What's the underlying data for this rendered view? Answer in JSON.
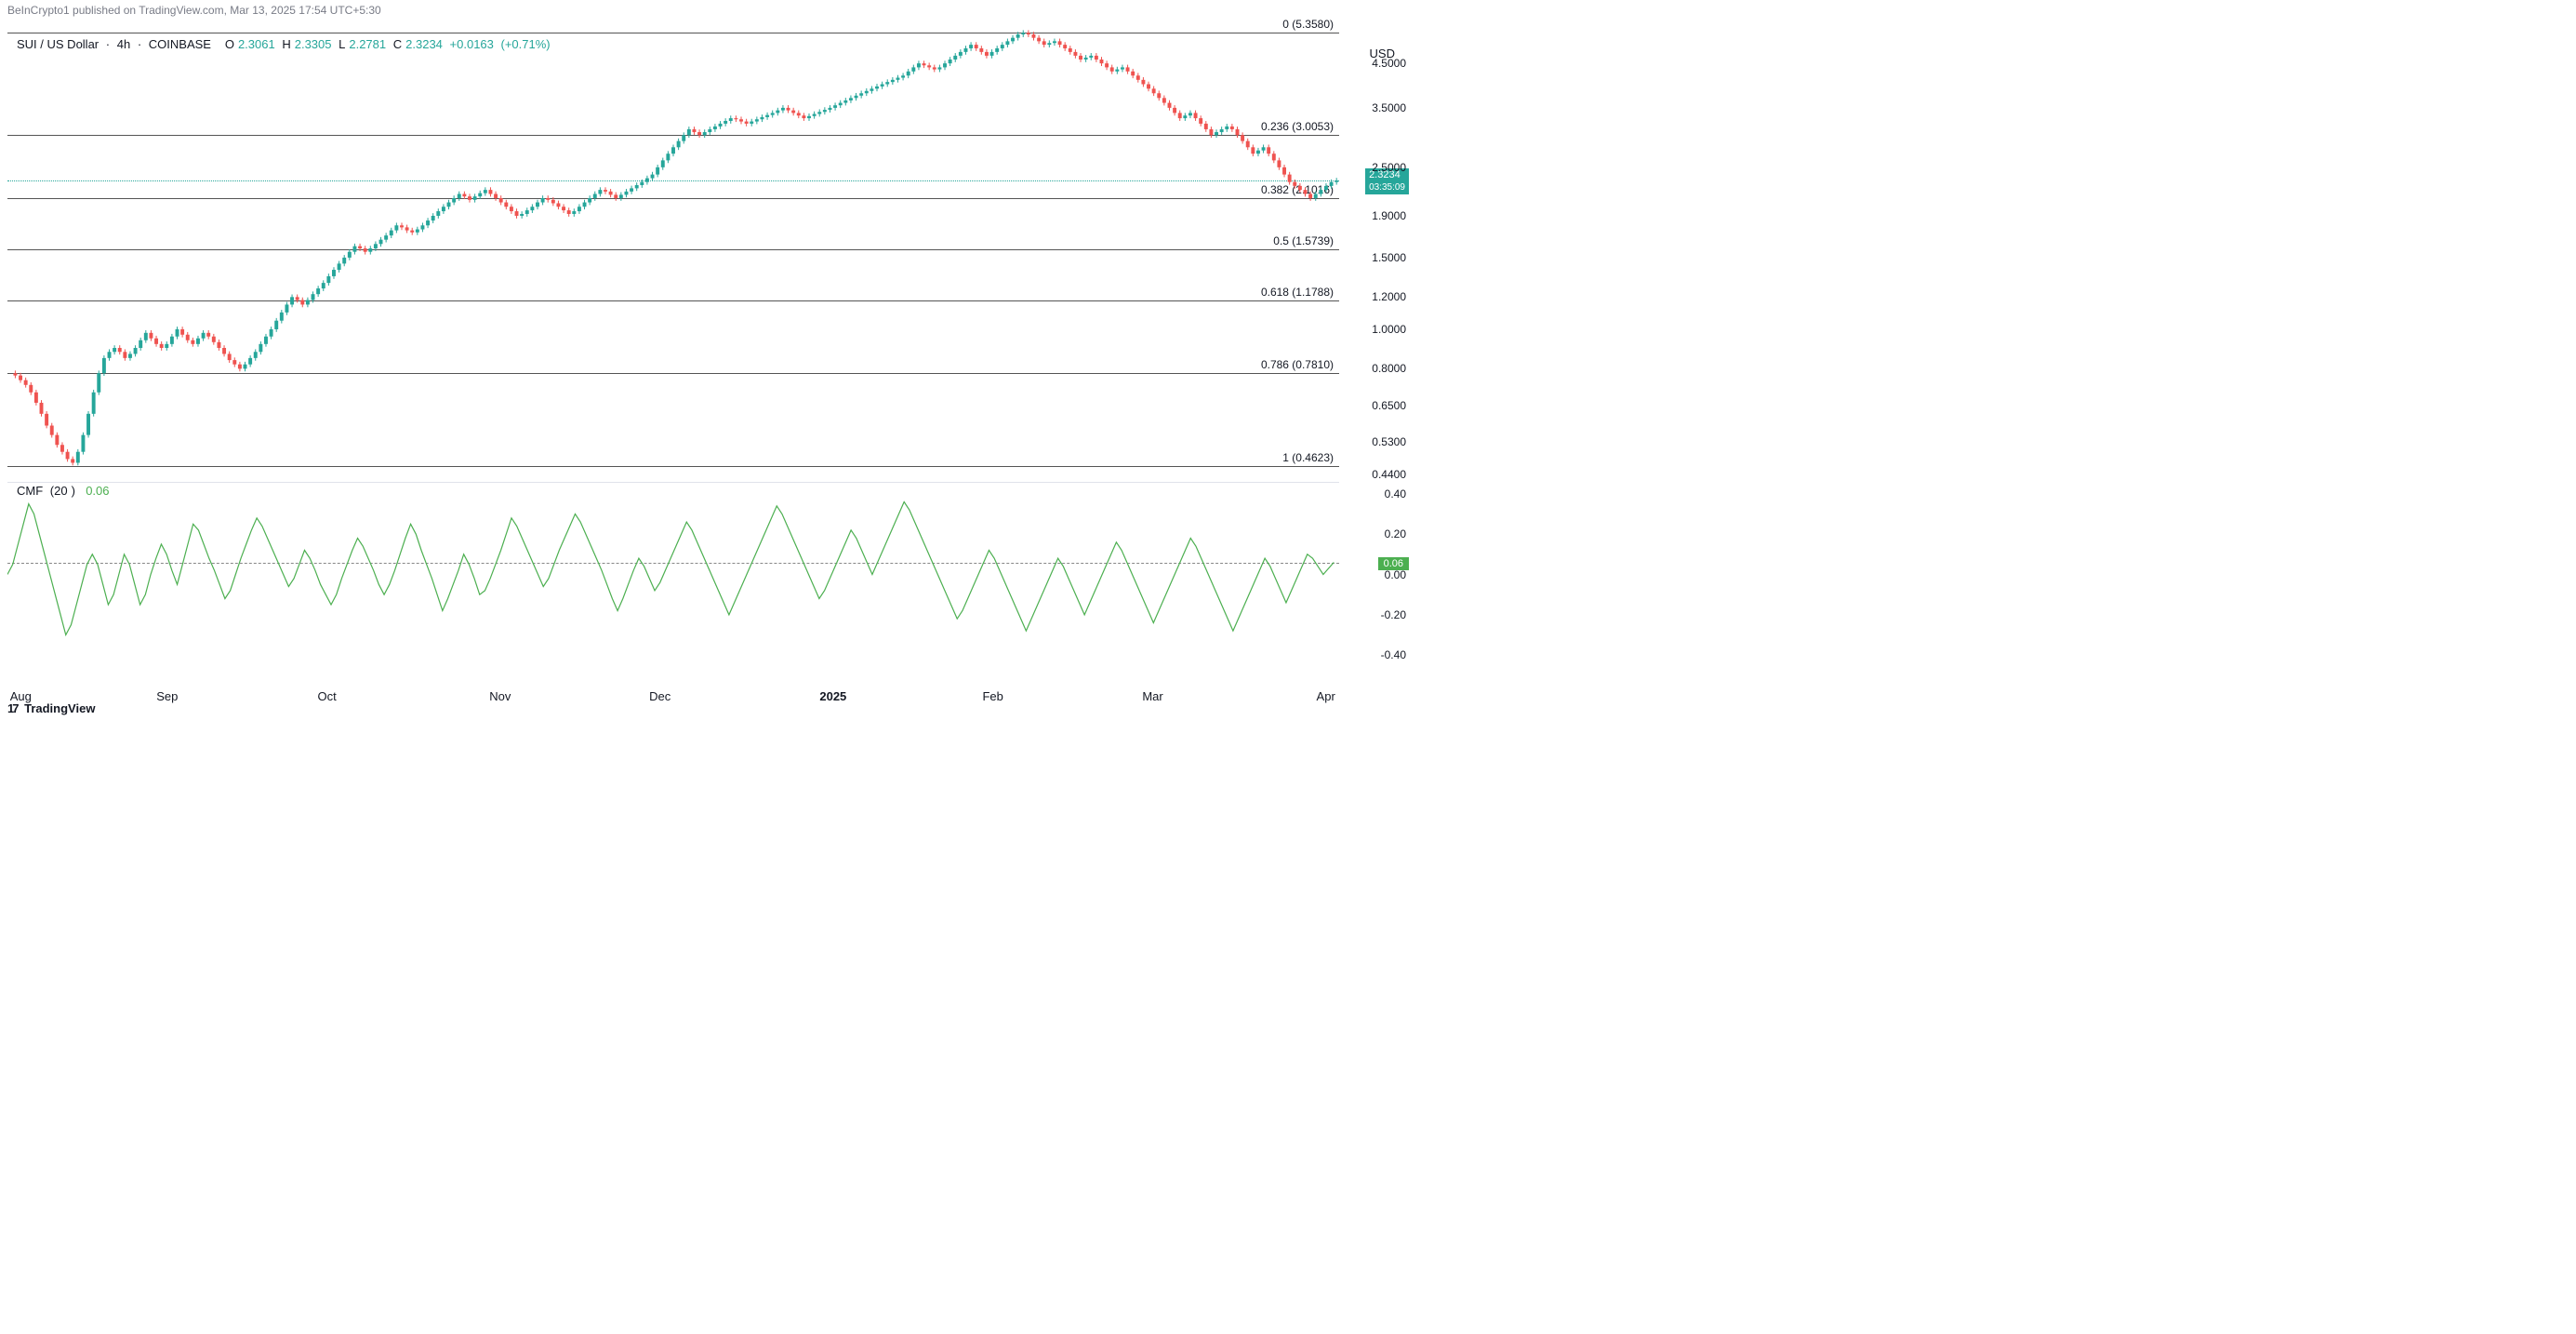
{
  "attribution": "BeInCrypto1 published on TradingView.com, Mar 13, 2025 17:54 UTC+5:30",
  "footer": {
    "brand": "TradingView",
    "icon": "17"
  },
  "main_chart": {
    "symbol": "SUI / US Dollar",
    "timeframe": "4h",
    "exchange": "COINBASE",
    "ohlc": {
      "o_label": "O",
      "o_value": "2.3061",
      "h_label": "H",
      "h_value": "2.3305",
      "l_label": "L",
      "l_value": "2.2781",
      "c_label": "C",
      "c_value": "2.3234",
      "change": "+0.0163",
      "change_pct": "(+0.71%)"
    },
    "current_price": "2.3234",
    "countdown": "03:35:09",
    "y_unit": "USD",
    "y_scale": "log",
    "ylim": [
      0.44,
      5.5
    ],
    "y_ticks": [
      {
        "v": 4.5,
        "label": "4.5000"
      },
      {
        "v": 3.5,
        "label": "3.5000"
      },
      {
        "v": 2.5,
        "label": "2.5000"
      },
      {
        "v": 1.9,
        "label": "1.9000"
      },
      {
        "v": 1.5,
        "label": "1.5000"
      },
      {
        "v": 1.2,
        "label": "1.2000"
      },
      {
        "v": 1.0,
        "label": "1.0000"
      },
      {
        "v": 0.8,
        "label": "0.8000"
      },
      {
        "v": 0.65,
        "label": "0.6500"
      },
      {
        "v": 0.53,
        "label": "0.5300"
      },
      {
        "v": 0.44,
        "label": "0.4400"
      }
    ],
    "fib_levels": [
      {
        "ratio": "0",
        "price": 5.358,
        "label": "0 (5.3580)"
      },
      {
        "ratio": "0.236",
        "price": 3.0053,
        "label": "0.236 (3.0053)"
      },
      {
        "ratio": "0.382",
        "price": 2.1016,
        "label": "0.382 (2.1016)"
      },
      {
        "ratio": "0.5",
        "price": 1.5739,
        "label": "0.5 (1.5739)"
      },
      {
        "ratio": "0.618",
        "price": 1.1788,
        "label": "0.618 (1.1788)"
      },
      {
        "ratio": "0.786",
        "price": 0.781,
        "label": "0.786 (0.7810)"
      },
      {
        "ratio": "1",
        "price": 0.4623,
        "label": "1 (0.4623)"
      }
    ],
    "colors": {
      "up_body": "#26a69a",
      "down_body": "#ef5350",
      "fib_line": "#555555",
      "price_line": "#26a69a",
      "text": "#131722",
      "bg": "#ffffff"
    },
    "price_series": [
      0.78,
      0.77,
      0.75,
      0.73,
      0.7,
      0.66,
      0.62,
      0.58,
      0.55,
      0.52,
      0.5,
      0.48,
      0.47,
      0.5,
      0.55,
      0.62,
      0.7,
      0.78,
      0.85,
      0.88,
      0.9,
      0.88,
      0.85,
      0.87,
      0.9,
      0.94,
      0.98,
      0.95,
      0.92,
      0.9,
      0.92,
      0.96,
      1.0,
      0.97,
      0.94,
      0.92,
      0.95,
      0.98,
      0.96,
      0.93,
      0.9,
      0.87,
      0.84,
      0.82,
      0.8,
      0.82,
      0.85,
      0.88,
      0.92,
      0.96,
      1.0,
      1.05,
      1.1,
      1.15,
      1.2,
      1.18,
      1.15,
      1.18,
      1.22,
      1.26,
      1.3,
      1.35,
      1.4,
      1.45,
      1.5,
      1.55,
      1.6,
      1.58,
      1.55,
      1.58,
      1.62,
      1.66,
      1.7,
      1.75,
      1.8,
      1.78,
      1.75,
      1.73,
      1.76,
      1.8,
      1.85,
      1.9,
      1.95,
      2.0,
      2.05,
      2.1,
      2.15,
      2.12,
      2.08,
      2.12,
      2.16,
      2.2,
      2.15,
      2.1,
      2.05,
      2.0,
      1.95,
      1.9,
      1.92,
      1.96,
      2.0,
      2.05,
      2.1,
      2.08,
      2.04,
      2.0,
      1.96,
      1.92,
      1.95,
      2.0,
      2.05,
      2.1,
      2.15,
      2.2,
      2.18,
      2.14,
      2.1,
      2.14,
      2.18,
      2.22,
      2.26,
      2.3,
      2.35,
      2.4,
      2.5,
      2.6,
      2.7,
      2.8,
      2.9,
      3.0,
      3.1,
      3.05,
      3.0,
      3.05,
      3.1,
      3.15,
      3.2,
      3.25,
      3.3,
      3.28,
      3.24,
      3.2,
      3.24,
      3.28,
      3.32,
      3.36,
      3.4,
      3.45,
      3.5,
      3.45,
      3.4,
      3.35,
      3.3,
      3.34,
      3.38,
      3.42,
      3.46,
      3.5,
      3.55,
      3.6,
      3.65,
      3.7,
      3.75,
      3.8,
      3.85,
      3.9,
      3.95,
      4.0,
      4.05,
      4.1,
      4.15,
      4.2,
      4.3,
      4.4,
      4.5,
      4.45,
      4.4,
      4.35,
      4.4,
      4.5,
      4.6,
      4.7,
      4.8,
      4.9,
      5.0,
      4.9,
      4.8,
      4.7,
      4.8,
      4.9,
      5.0,
      5.1,
      5.2,
      5.3,
      5.35,
      5.3,
      5.2,
      5.1,
      5.0,
      5.05,
      5.1,
      5.0,
      4.9,
      4.8,
      4.7,
      4.6,
      4.65,
      4.7,
      4.6,
      4.5,
      4.4,
      4.3,
      4.35,
      4.4,
      4.3,
      4.2,
      4.1,
      4.0,
      3.9,
      3.8,
      3.7,
      3.6,
      3.5,
      3.4,
      3.3,
      3.35,
      3.4,
      3.3,
      3.2,
      3.1,
      3.0,
      3.05,
      3.1,
      3.15,
      3.1,
      3.0,
      2.9,
      2.8,
      2.7,
      2.75,
      2.8,
      2.7,
      2.6,
      2.5,
      2.4,
      2.3,
      2.25,
      2.2,
      2.15,
      2.1,
      2.15,
      2.2,
      2.25,
      2.3,
      2.32
    ]
  },
  "cmf_pane": {
    "name": "CMF",
    "period": "20",
    "value": "0.06",
    "ylim": [
      -0.45,
      0.45
    ],
    "y_ticks": [
      {
        "v": 0.4,
        "label": "0.40"
      },
      {
        "v": 0.2,
        "label": "0.20"
      },
      {
        "v": 0.0,
        "label": "0.00"
      },
      {
        "v": -0.2,
        "label": "-0.20"
      },
      {
        "v": -0.4,
        "label": "-0.40"
      }
    ],
    "line_color": "#4caf50",
    "zero_color": "#888888",
    "series": [
      0.0,
      0.05,
      0.15,
      0.25,
      0.35,
      0.3,
      0.2,
      0.1,
      0.0,
      -0.1,
      -0.2,
      -0.3,
      -0.25,
      -0.15,
      -0.05,
      0.05,
      0.1,
      0.05,
      -0.05,
      -0.15,
      -0.1,
      0.0,
      0.1,
      0.05,
      -0.05,
      -0.15,
      -0.1,
      0.0,
      0.08,
      0.15,
      0.1,
      0.02,
      -0.05,
      0.05,
      0.15,
      0.25,
      0.22,
      0.15,
      0.08,
      0.02,
      -0.05,
      -0.12,
      -0.08,
      0.0,
      0.08,
      0.15,
      0.22,
      0.28,
      0.24,
      0.18,
      0.12,
      0.06,
      0.0,
      -0.06,
      -0.02,
      0.05,
      0.12,
      0.08,
      0.02,
      -0.05,
      -0.1,
      -0.15,
      -0.1,
      -0.02,
      0.05,
      0.12,
      0.18,
      0.14,
      0.08,
      0.02,
      -0.05,
      -0.1,
      -0.05,
      0.02,
      0.1,
      0.18,
      0.25,
      0.2,
      0.12,
      0.05,
      -0.02,
      -0.1,
      -0.18,
      -0.12,
      -0.05,
      0.02,
      0.1,
      0.05,
      -0.02,
      -0.1,
      -0.08,
      -0.02,
      0.05,
      0.12,
      0.2,
      0.28,
      0.24,
      0.18,
      0.12,
      0.06,
      0.0,
      -0.06,
      -0.02,
      0.05,
      0.12,
      0.18,
      0.24,
      0.3,
      0.26,
      0.2,
      0.14,
      0.08,
      0.02,
      -0.05,
      -0.12,
      -0.18,
      -0.12,
      -0.05,
      0.02,
      0.08,
      0.04,
      -0.02,
      -0.08,
      -0.04,
      0.02,
      0.08,
      0.14,
      0.2,
      0.26,
      0.22,
      0.16,
      0.1,
      0.04,
      -0.02,
      -0.08,
      -0.14,
      -0.2,
      -0.14,
      -0.08,
      -0.02,
      0.04,
      0.1,
      0.16,
      0.22,
      0.28,
      0.34,
      0.3,
      0.24,
      0.18,
      0.12,
      0.06,
      0.0,
      -0.06,
      -0.12,
      -0.08,
      -0.02,
      0.04,
      0.1,
      0.16,
      0.22,
      0.18,
      0.12,
      0.06,
      0.0,
      0.06,
      0.12,
      0.18,
      0.24,
      0.3,
      0.36,
      0.32,
      0.26,
      0.2,
      0.14,
      0.08,
      0.02,
      -0.04,
      -0.1,
      -0.16,
      -0.22,
      -0.18,
      -0.12,
      -0.06,
      0.0,
      0.06,
      0.12,
      0.08,
      0.02,
      -0.04,
      -0.1,
      -0.16,
      -0.22,
      -0.28,
      -0.22,
      -0.16,
      -0.1,
      -0.04,
      0.02,
      0.08,
      0.04,
      -0.02,
      -0.08,
      -0.14,
      -0.2,
      -0.14,
      -0.08,
      -0.02,
      0.04,
      0.1,
      0.16,
      0.12,
      0.06,
      0.0,
      -0.06,
      -0.12,
      -0.18,
      -0.24,
      -0.18,
      -0.12,
      -0.06,
      0.0,
      0.06,
      0.12,
      0.18,
      0.14,
      0.08,
      0.02,
      -0.04,
      -0.1,
      -0.16,
      -0.22,
      -0.28,
      -0.22,
      -0.16,
      -0.1,
      -0.04,
      0.02,
      0.08,
      0.04,
      -0.02,
      -0.08,
      -0.14,
      -0.08,
      -0.02,
      0.04,
      0.1,
      0.08,
      0.04,
      0.0,
      0.03,
      0.06
    ]
  },
  "xaxis": {
    "labels": [
      {
        "pos": 0.01,
        "text": "Aug",
        "bold": false
      },
      {
        "pos": 0.12,
        "text": "Sep",
        "bold": false
      },
      {
        "pos": 0.24,
        "text": "Oct",
        "bold": false
      },
      {
        "pos": 0.37,
        "text": "Nov",
        "bold": false
      },
      {
        "pos": 0.49,
        "text": "Dec",
        "bold": false
      },
      {
        "pos": 0.62,
        "text": "2025",
        "bold": true
      },
      {
        "pos": 0.74,
        "text": "Feb",
        "bold": false
      },
      {
        "pos": 0.86,
        "text": "Mar",
        "bold": false
      },
      {
        "pos": 0.99,
        "text": "Apr",
        "bold": false
      }
    ]
  }
}
